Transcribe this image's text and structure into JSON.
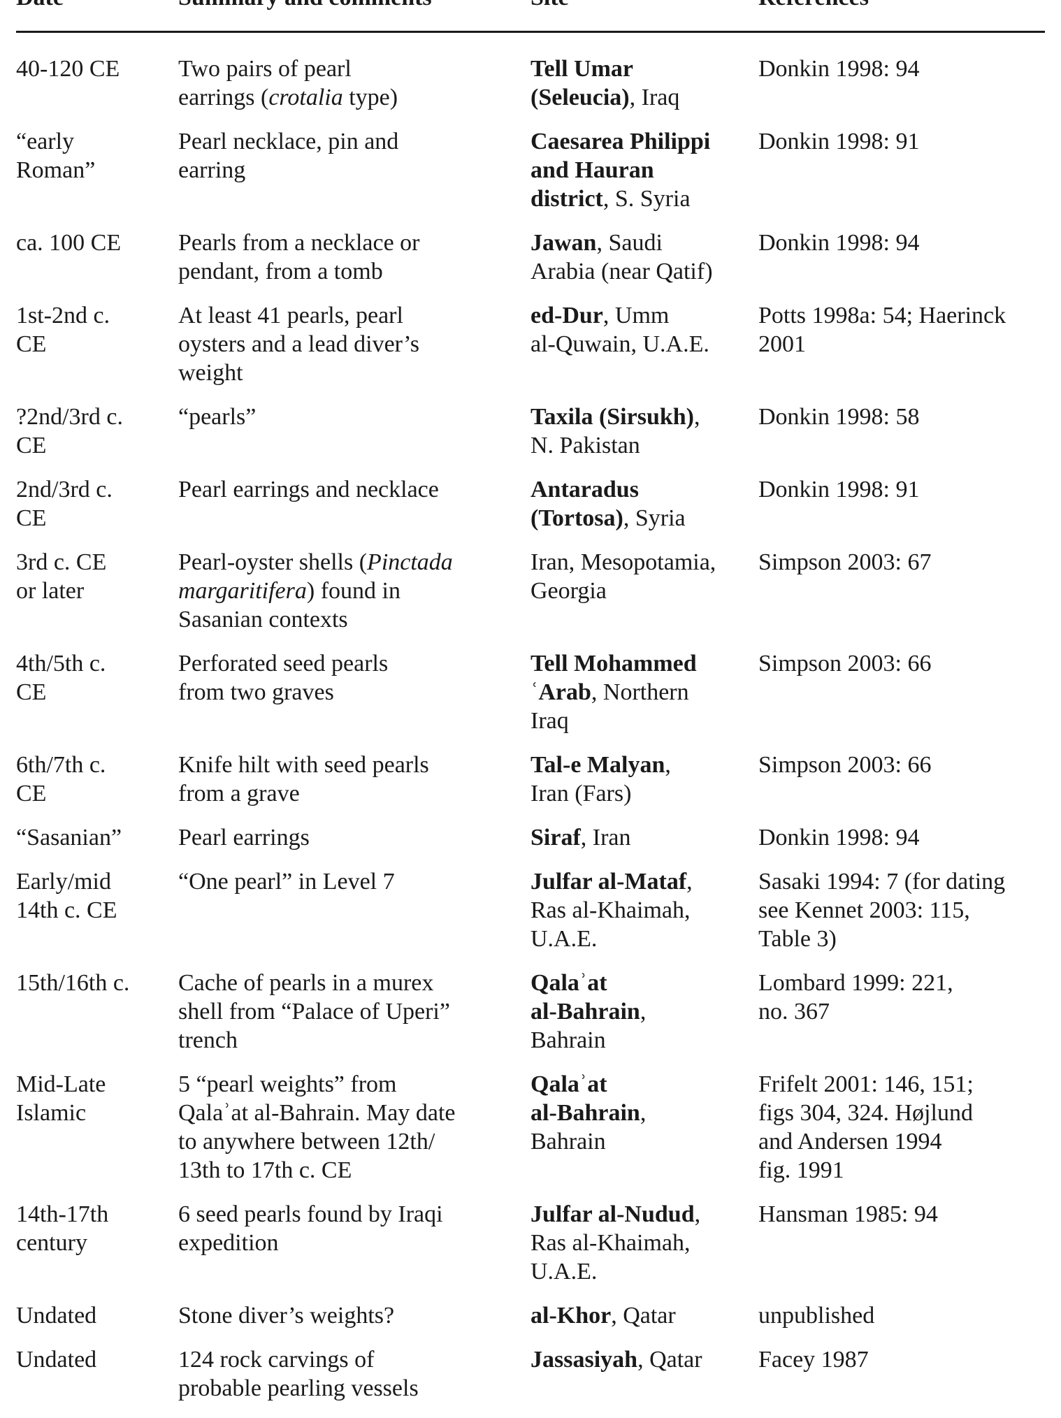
{
  "headers": [
    "Date",
    "Summary and comments",
    "Site",
    "References"
  ],
  "rows": [
    {
      "date": [
        "40-120 CE"
      ],
      "summary": [
        "Two pairs of pearl",
        [
          [
            "earrings ("
          ],
          [
            "crotalia",
            "i"
          ],
          [
            " type)"
          ]
        ]
      ],
      "site": [
        [
          [
            "Tell Umar",
            "b"
          ]
        ],
        [
          [
            "(Seleucia)",
            "b"
          ],
          [
            ", Iraq"
          ]
        ]
      ],
      "refs": [
        "Donkin 1998: 94"
      ]
    },
    {
      "date": [
        "“early",
        "Roman”"
      ],
      "summary": [
        "Pearl necklace, pin and",
        "earring"
      ],
      "site": [
        [
          [
            "Caesarea Philippi",
            "b"
          ]
        ],
        [
          [
            "and Hauran",
            "b"
          ]
        ],
        [
          [
            "district",
            "b"
          ],
          [
            ", S. Syria"
          ]
        ]
      ],
      "refs": [
        "Donkin 1998: 91"
      ]
    },
    {
      "date": [
        "ca. 100 CE"
      ],
      "summary": [
        "Pearls from a necklace or",
        "pendant, from a tomb"
      ],
      "site": [
        [
          [
            "Jawan",
            "b"
          ],
          [
            ", Saudi"
          ]
        ],
        "Arabia (near Qatif)"
      ],
      "refs": [
        "Donkin 1998: 94"
      ]
    },
    {
      "date": [
        "1st-2nd c.",
        "CE"
      ],
      "summary": [
        "At least 41 pearls, pearl",
        "oysters and a lead diver’s",
        "weight"
      ],
      "site": [
        [
          [
            "ed-Dur",
            "b"
          ],
          [
            ", Umm"
          ]
        ],
        "al-Quwain, U.A.E."
      ],
      "refs": [
        "Potts 1998a: 54; Haerinck",
        "2001"
      ]
    },
    {
      "date": [
        "?2nd/3rd c.",
        "CE"
      ],
      "summary": [
        "“pearls”"
      ],
      "site": [
        [
          [
            "Taxila (Sirsukh)",
            "b"
          ],
          [
            ","
          ]
        ],
        "N. Pakistan"
      ],
      "refs": [
        "Donkin 1998: 58"
      ]
    },
    {
      "date": [
        "2nd/3rd c.",
        "CE"
      ],
      "summary": [
        "Pearl earrings and necklace"
      ],
      "site": [
        [
          [
            "Antaradus",
            "b"
          ]
        ],
        [
          [
            "(Tortosa)",
            "b"
          ],
          [
            ", Syria"
          ]
        ]
      ],
      "refs": [
        "Donkin 1998: 91"
      ]
    },
    {
      "date": [
        "3rd c. CE",
        "or later"
      ],
      "summary": [
        [
          [
            "Pearl-oyster shells ("
          ],
          [
            "Pinctada",
            "i"
          ]
        ],
        [
          [
            "margaritifera",
            "i"
          ],
          [
            ") found in"
          ]
        ],
        "Sasanian contexts"
      ],
      "site": [
        "Iran, Mesopotamia,",
        "Georgia"
      ],
      "refs": [
        "Simpson 2003: 67"
      ]
    },
    {
      "date": [
        "4th/5th c.",
        "CE"
      ],
      "summary": [
        "Perforated seed pearls",
        "from two graves"
      ],
      "site": [
        [
          [
            "Tell Mohammed",
            "b"
          ]
        ],
        [
          [
            "ʿArab",
            "b"
          ],
          [
            ", Northern"
          ]
        ],
        "Iraq"
      ],
      "refs": [
        "Simpson 2003: 66"
      ]
    },
    {
      "date": [
        "6th/7th c.",
        "CE"
      ],
      "summary": [
        "Knife hilt with seed pearls",
        "from a grave"
      ],
      "site": [
        [
          [
            "Tal-e Malyan",
            "b"
          ],
          [
            ","
          ]
        ],
        "Iran (Fars)"
      ],
      "refs": [
        "Simpson 2003: 66"
      ]
    },
    {
      "date": [
        "“Sasanian”"
      ],
      "summary": [
        "Pearl earrings"
      ],
      "site": [
        [
          [
            "Siraf",
            "b"
          ],
          [
            ", Iran"
          ]
        ]
      ],
      "refs": [
        "Donkin 1998: 94"
      ]
    },
    {
      "date": [
        "Early/mid",
        "14th c. CE"
      ],
      "summary": [
        "“One pearl” in Level 7"
      ],
      "site": [
        [
          [
            "Julfar al-Mataf",
            "b"
          ],
          [
            ","
          ]
        ],
        "Ras al-Khaimah,",
        "U.A.E."
      ],
      "refs": [
        "Sasaki 1994: 7 (for dating",
        "see Kennet 2003: 115,",
        "Table 3)"
      ]
    },
    {
      "date": [
        "15th/16th c."
      ],
      "summary": [
        "Cache of pearls in a murex",
        "shell from “Palace of Uperi”",
        "trench"
      ],
      "site": [
        [
          [
            "Qalaʾat",
            "b"
          ]
        ],
        [
          [
            "al-Bahrain",
            "b"
          ],
          [
            ","
          ]
        ],
        "Bahrain"
      ],
      "refs": [
        "Lombard 1999: 221,",
        "no. 367"
      ]
    },
    {
      "date": [
        "Mid-Late",
        "Islamic"
      ],
      "summary": [
        "5 “pearl weights” from",
        "Qalaʾat al-Bahrain. May date",
        "to anywhere between 12th/",
        "13th to 17th c. CE"
      ],
      "site": [
        [
          [
            "Qalaʾat",
            "b"
          ]
        ],
        [
          [
            "al-Bahrain",
            "b"
          ],
          [
            ","
          ]
        ],
        "Bahrain"
      ],
      "refs": [
        "Frifelt 2001: 146, 151;",
        "figs 304, 324. Højlund",
        "and Andersen 1994",
        "fig. 1991"
      ]
    },
    {
      "date": [
        "14th-17th",
        "century"
      ],
      "summary": [
        "6 seed pearls found by Iraqi",
        "expedition"
      ],
      "site": [
        [
          [
            "Julfar al-Nudud",
            "b"
          ],
          [
            ","
          ]
        ],
        "Ras al-Khaimah,",
        "U.A.E."
      ],
      "refs": [
        "Hansman 1985: 94"
      ]
    },
    {
      "date": [
        "Undated"
      ],
      "summary": [
        "Stone diver’s weights?"
      ],
      "site": [
        [
          [
            "al-Khor",
            "b"
          ],
          [
            ", Qatar"
          ]
        ]
      ],
      "refs": [
        "unpublished"
      ]
    },
    {
      "date": [
        "Undated"
      ],
      "summary": [
        "124 rock carvings of",
        "probable pearling vessels"
      ],
      "site": [
        [
          [
            "Jassasiyah",
            "b"
          ],
          [
            ", Qatar"
          ]
        ]
      ],
      "refs": [
        "Facey 1987"
      ]
    }
  ]
}
